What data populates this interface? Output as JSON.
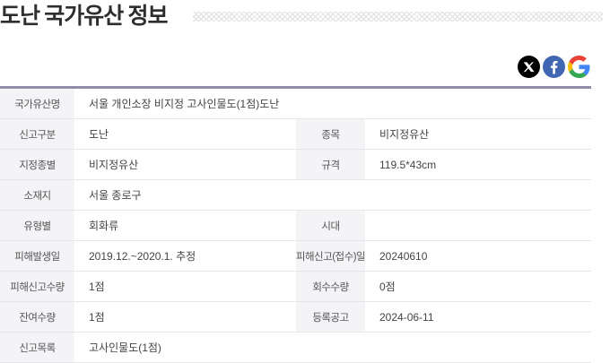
{
  "page": {
    "title": "도난 국가유산 정보"
  },
  "share": {
    "buttons": [
      {
        "name": "x",
        "icon": "x-icon",
        "brand_color": "#000000"
      },
      {
        "name": "facebook",
        "icon": "facebook-icon",
        "brand_color": "#4267B2"
      },
      {
        "name": "google",
        "icon": "google-icon",
        "brand_colors": [
          "#EA4335",
          "#4285F4",
          "#FBBC05",
          "#34A853"
        ]
      }
    ]
  },
  "table": {
    "top_border_color": "#8F90A7",
    "label_cell_bg": "#F4F4F7",
    "row_border_color": "#E7E7EA",
    "rows": [
      {
        "label": "국가유산명",
        "value": "서울 개인소장 비지정 고사인물도(1점)도난",
        "span": true
      },
      {
        "label": "신고구분",
        "value": "도난",
        "label2": "종목",
        "value2": "비지정유산"
      },
      {
        "label": "지정종별",
        "value": "비지정유산",
        "label2": "규격",
        "value2": "119.5*43cm"
      },
      {
        "label": "소재지",
        "value": "서울 종로구",
        "span": true
      },
      {
        "label": "유형별",
        "value": "회화류",
        "label2": "시대",
        "value2": ""
      },
      {
        "label": "피해발생일",
        "value": "2019.12.~2020.1. 추정",
        "label2": "피해신고(접수)일",
        "value2": "20240610"
      },
      {
        "label": "피해신고수량",
        "value": "1점",
        "label2": "회수수량",
        "value2": "0점"
      },
      {
        "label": "잔여수량",
        "value": "1점",
        "label2": "등록공고",
        "value2": "2024-06-11"
      },
      {
        "label": "신고목록",
        "value": "고사인물도(1점)",
        "span": true
      }
    ]
  }
}
